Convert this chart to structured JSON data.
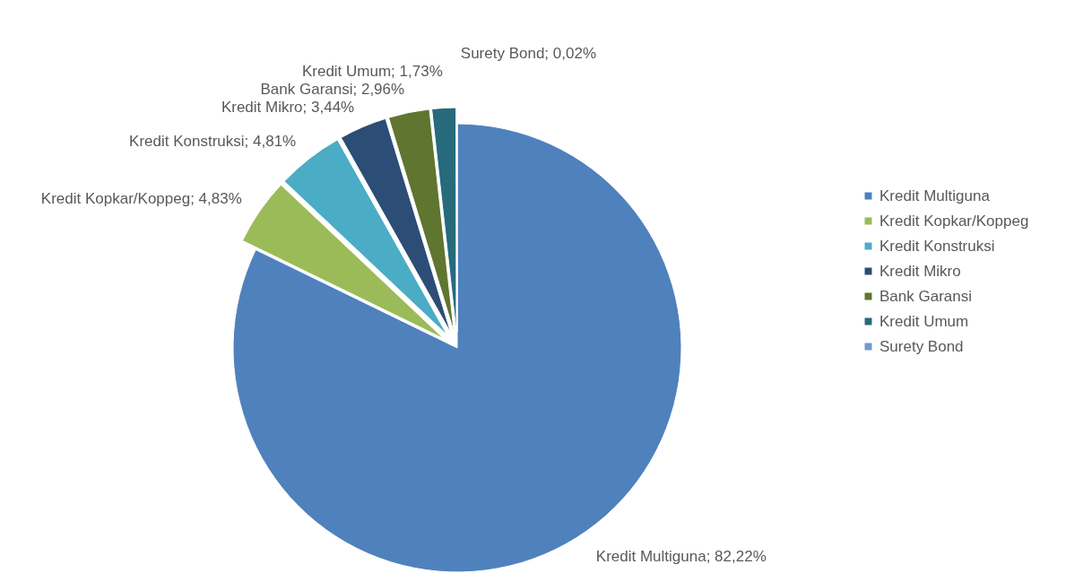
{
  "chart_data": {
    "type": "pie",
    "categories": [
      "Kredit Multiguna",
      "Kredit Kopkar/Koppeg",
      "Kredit Konstruksi",
      "Kredit Mikro",
      "Bank Garansi",
      "Kredit Umum",
      "Surety Bond"
    ],
    "values": [
      82.22,
      4.83,
      4.81,
      3.44,
      2.96,
      1.73,
      0.02
    ],
    "colors": [
      "#4f81bd",
      "#9bbb59",
      "#4bacc6",
      "#2c4d75",
      "#5f7530",
      "#276a7c",
      "#729aca"
    ],
    "value_labels": [
      "Kredit Multiguna; 82,22%",
      "Kredit Kopkar/Koppeg; 4,83%",
      "Kredit Konstruksi; 4,81%",
      "Kredit Mikro; 3,44%",
      "Bank Garansi; 2,96%",
      "Kredit Umum; 1,73%",
      "Surety Bond; 0,02%"
    ],
    "legend": "right"
  }
}
